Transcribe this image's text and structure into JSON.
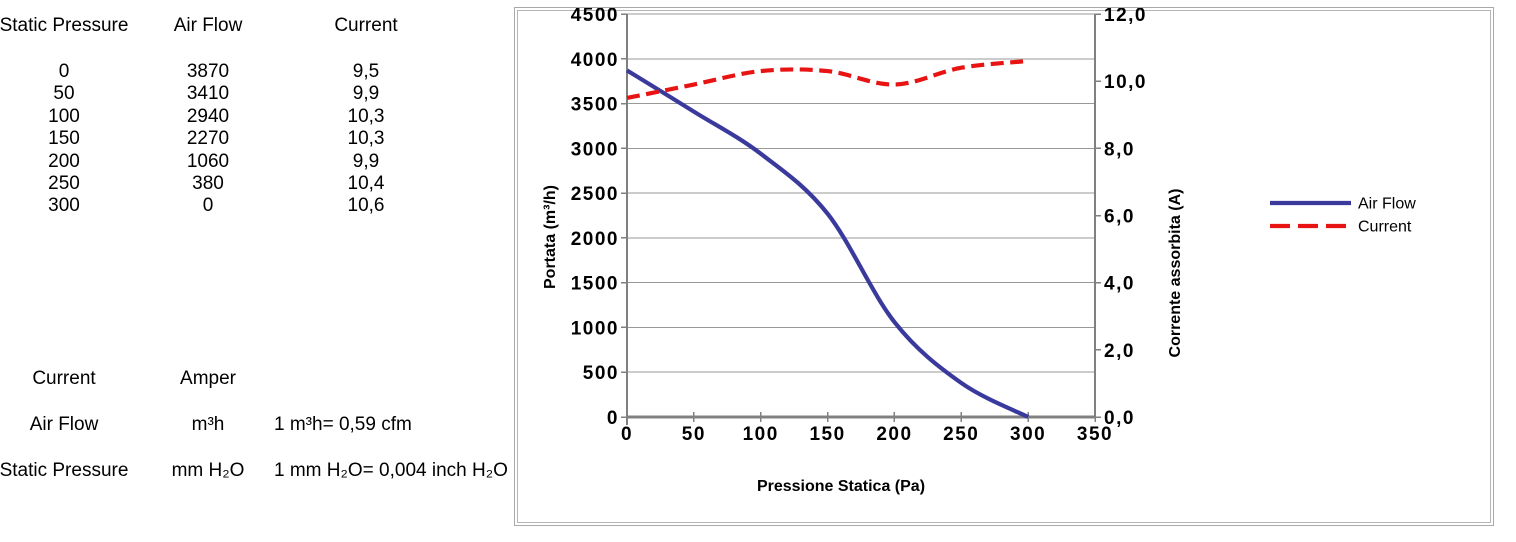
{
  "table": {
    "headers": [
      "Static Pressure",
      "Air Flow",
      "Current"
    ],
    "rows": [
      [
        "0",
        "3870",
        "9,5"
      ],
      [
        "50",
        "3410",
        "9,9"
      ],
      [
        "100",
        "2940",
        "10,3"
      ],
      [
        "150",
        "2270",
        "10,3"
      ],
      [
        "200",
        "1060",
        "9,9"
      ],
      [
        "250",
        "380",
        "10,4"
      ],
      [
        "300",
        "0",
        "10,6"
      ]
    ]
  },
  "units": {
    "rows": [
      {
        "label": "Current",
        "unit": "Amper",
        "note": ""
      },
      {
        "label": "Air Flow",
        "unit": "m³h",
        "note": "1 m³h= 0,59 cfm"
      },
      {
        "label": "Static Pressure",
        "unit": "mm H₂O",
        "note": "1 mm H₂O= 0,004 inch H₂O"
      }
    ]
  },
  "chart_data": {
    "type": "line",
    "x": [
      0,
      50,
      100,
      150,
      200,
      250,
      300
    ],
    "series": [
      {
        "name": "Air Flow",
        "axis": "left",
        "color": "#3A3A9D",
        "style": "solid",
        "values": [
          3870,
          3410,
          2940,
          2270,
          1060,
          380,
          0
        ]
      },
      {
        "name": "Current",
        "axis": "right",
        "color": "#E81414",
        "style": "dashed",
        "values": [
          9.5,
          9.9,
          10.3,
          10.3,
          9.9,
          10.4,
          10.6
        ]
      }
    ],
    "xlabel": "Pressione Statica (Pa)",
    "ylabel_left": "Portata (m³/h)",
    "ylabel_right": "Corrente assorbita (A)",
    "xlim": [
      0,
      350
    ],
    "ylim_left": [
      0,
      4500
    ],
    "ylim_right": [
      0,
      12
    ],
    "xtick_labels": [
      "0",
      "50",
      "100",
      "150",
      "200",
      "250",
      "300",
      "350"
    ],
    "ytick_labels_left": [
      "4500",
      "4000",
      "3500",
      "3000",
      "2500",
      "2000",
      "1500",
      "1000",
      "500",
      "0"
    ],
    "ytick_labels_right": [
      "12,0",
      "10,0",
      "8,0",
      "6,0",
      "4,0",
      "2,0",
      "0,0"
    ],
    "grid": true,
    "legend": [
      "Air Flow",
      "Current"
    ],
    "legend_position": "right-middle"
  },
  "colors": {
    "air_flow": "#3A3A9D",
    "current": "#E81414",
    "gridline": "#999999",
    "axis": "#808080",
    "chart_border": "#a9a9a9",
    "text": "#000000"
  }
}
